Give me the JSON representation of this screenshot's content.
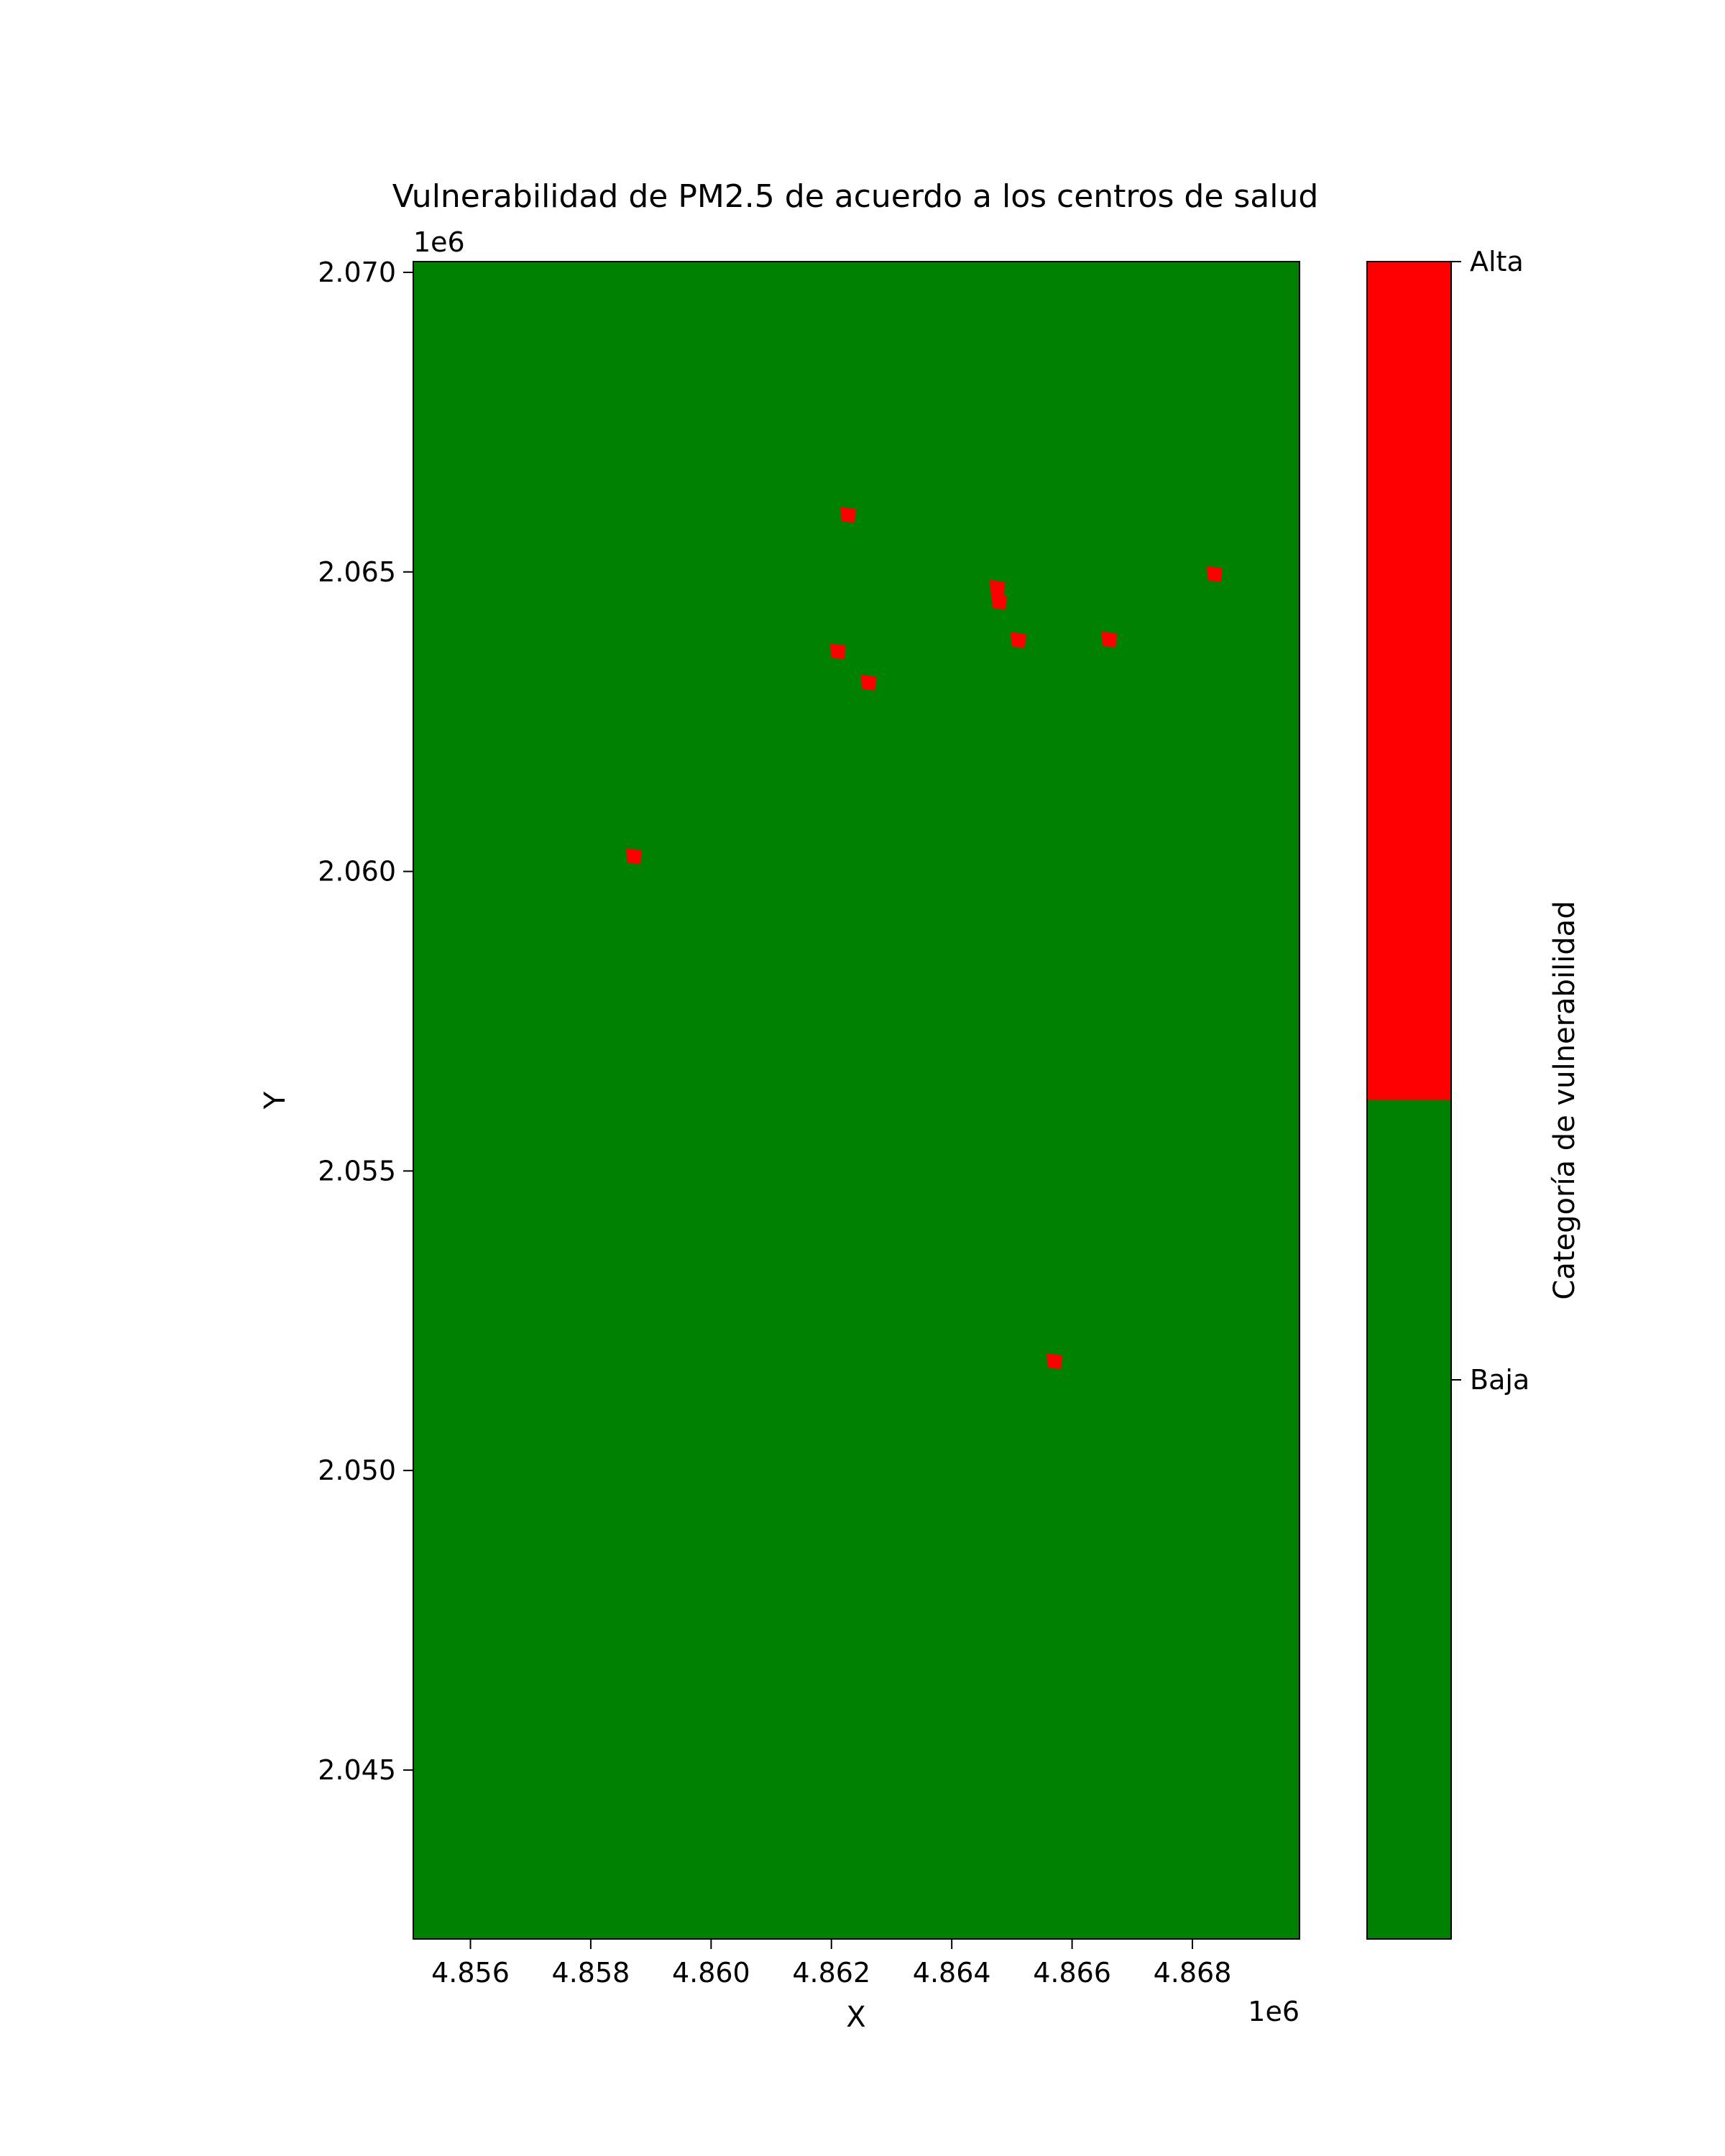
{
  "chart_data": {
    "type": "heatmap",
    "title": "Vulnerabilidad de PM2.5 de acuerdo a los centros de salud",
    "xlabel": "X",
    "ylabel": "Y",
    "x_offset_label": "1e6",
    "y_offset_label": "1e6",
    "xlim": [
      4.85505,
      4.86978
    ],
    "ylim": [
      2.04218,
      2.07018
    ],
    "x_ticks": [
      4.856,
      4.858,
      4.86,
      4.862,
      4.864,
      4.866,
      4.868
    ],
    "x_tick_labels": [
      "4.856",
      "4.858",
      "4.860",
      "4.862",
      "4.864",
      "4.866",
      "4.868"
    ],
    "y_ticks": [
      2.045,
      2.05,
      2.055,
      2.06,
      2.065,
      2.07
    ],
    "y_tick_labels": [
      "2.045",
      "2.050",
      "2.055",
      "2.060",
      "2.065",
      "2.070"
    ],
    "grid": false,
    "background_category": "Baja",
    "points": [
      {
        "x": 4.86228,
        "y": 2.06595,
        "category": "Alta"
      },
      {
        "x": 4.86837,
        "y": 2.06496,
        "category": "Alta"
      },
      {
        "x": 4.86476,
        "y": 2.06473,
        "category": "Alta"
      },
      {
        "x": 4.86479,
        "y": 2.0645,
        "category": "Alta"
      },
      {
        "x": 4.86511,
        "y": 2.06386,
        "category": "Alta"
      },
      {
        "x": 4.86662,
        "y": 2.06387,
        "category": "Alta"
      },
      {
        "x": 4.86211,
        "y": 2.06367,
        "category": "Alta"
      },
      {
        "x": 4.86262,
        "y": 2.06315,
        "category": "Alta"
      },
      {
        "x": 4.85872,
        "y": 2.06025,
        "category": "Alta"
      },
      {
        "x": 4.86571,
        "y": 2.05182,
        "category": "Alta"
      }
    ],
    "colorbar": {
      "label": "Categoría de vulnerabilidad",
      "categories": [
        {
          "label": "Baja",
          "color": "#008000"
        },
        {
          "label": "Alta",
          "color": "#ff0000"
        }
      ]
    }
  }
}
